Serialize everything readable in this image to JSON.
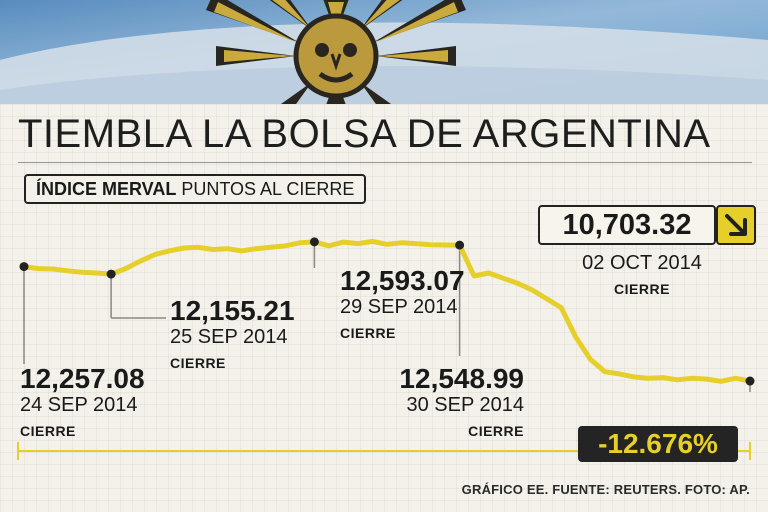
{
  "colors": {
    "line": "#e6cf2a",
    "dark": "#222222",
    "flag_blue": "#6fa8d8",
    "flag_white": "#eef2f6",
    "sun": "#d9b33a",
    "background": "#f4f1ea"
  },
  "banner": {
    "description_icon": "argentina-flag-sun-icon"
  },
  "headline": "TIEMBLA LA BOLSA DE ARGENTINA",
  "index_box": {
    "bold": "ÍNDICE MERVAL",
    "normal": "PUNTOS AL CIERRE"
  },
  "annotations": [
    {
      "value": "12,257.08",
      "date": "24 SEP 2014",
      "tag": "CIERRE"
    },
    {
      "value": "12,155.21",
      "date": "25 SEP 2014",
      "tag": "CIERRE"
    },
    {
      "value": "12,593.07",
      "date": "29 SEP 2014",
      "tag": "CIERRE"
    },
    {
      "value": "12,548.99",
      "date": "30 SEP 2014",
      "tag": "CIERRE"
    },
    {
      "value": "10,703.32",
      "date": "02 OCT 2014",
      "tag": "CIERRE"
    }
  ],
  "change": {
    "value": "-12.676%",
    "direction_icon": "arrow-down-right-icon"
  },
  "source": "GRÁFICO EE. FUENTE: REUTERS. FOTO: AP.",
  "chart_data": {
    "type": "line",
    "title": "TIEMBLA LA BOLSA DE ARGENTINA",
    "subtitle": "ÍNDICE MERVAL PUNTOS AL CIERRE",
    "grid": false,
    "legend": "none",
    "ylim": [
      10500,
      12700
    ],
    "key_points": [
      {
        "label": "24 SEP 2014",
        "value": 12257.08
      },
      {
        "label": "25 SEP 2014",
        "value": 12155.21
      },
      {
        "label": "29 SEP 2014",
        "value": 12593.07
      },
      {
        "label": "30 SEP 2014",
        "value": 12548.99
      },
      {
        "label": "02 OCT 2014",
        "value": 10703.32
      }
    ],
    "series": [
      {
        "values": [
          12257.08,
          12230,
          12225,
          12200,
          12180,
          12170,
          12155.21,
          12230,
          12330,
          12420,
          12470,
          12510,
          12520,
          12490,
          12500,
          12470,
          12500,
          12520,
          12540,
          12580,
          12593.07,
          12540,
          12590,
          12570,
          12600,
          12560,
          12580,
          12570,
          12555,
          12550,
          12548.99,
          12130,
          12170,
          12100,
          12030,
          11940,
          11820,
          11700,
          11300,
          11000,
          10830,
          10800,
          10760,
          10740,
          10750,
          10720,
          10740,
          10730,
          10700,
          10740,
          10703.32
        ]
      }
    ]
  }
}
